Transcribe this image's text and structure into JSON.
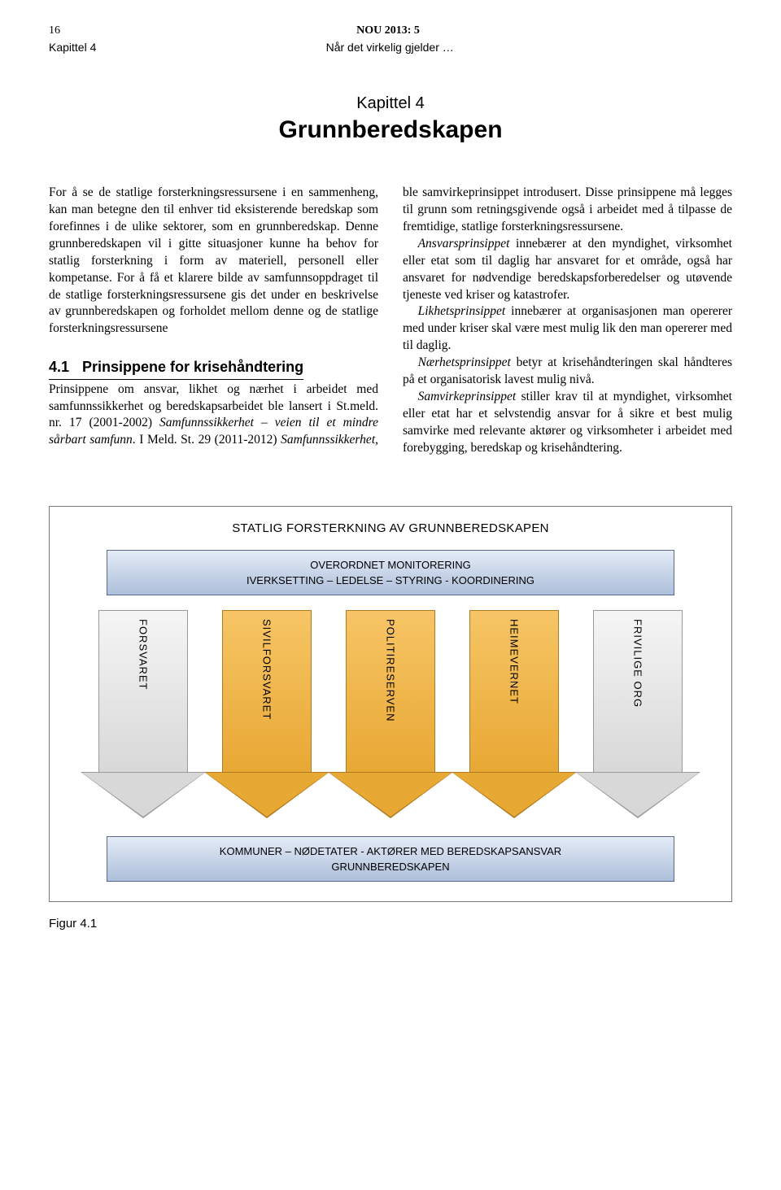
{
  "header": {
    "page_number": "16",
    "doc_id": "NOU 2013: 5",
    "chapter_ref": "Kapittel 4",
    "doc_subtitle": "Når det virkelig gjelder …"
  },
  "chapter": {
    "label": "Kapittel 4",
    "title": "Grunnberedskapen"
  },
  "body": {
    "p1": "For å se de statlige forsterkningsressursene i en sammenheng, kan man betegne den til enhver tid eksisterende beredskap som forefinnes i de ulike sektorer, som en grunnberedskap. Denne grunnberedskapen vil i gitte situasjoner kunne ha behov for statlig forsterkning i form av materiell, personell eller kompetanse. For å få et klarere bilde av samfunnsoppdraget til de statlige forsterkningsressursene gis det under en beskrivelse av grunnberedskapen og forholdet mellom denne og de statlige forsterkningsressursene",
    "section_num": "4.1",
    "section_title": "Prinsippene for krisehåndtering",
    "p2a": "Prinsippene om ansvar, likhet og nærhet i arbeidet med samfunnssikkerhet og beredskapsarbeidet ble lansert i St.meld. nr. 17 (2001-2002) ",
    "p2b_i": "Samfunnssikkerhet – veien til et mindre sårbart samfunn",
    "p2c": ". I Meld. St. 29 (2011-2012) ",
    "p2d_i": "Samfunnssikkerhet",
    "p2e": ", ble samvirkeprinsippet introdusert. Disse prinsippene må legges til grunn som retningsgivende også i arbeidet med å tilpasse de fremtidige, statlige forsterkningsressursene.",
    "p3a_i": "Ansvarsprinsippet",
    "p3b": " innebærer at den myndighet, virksomhet eller etat som til daglig har ansvaret for et område, også har ansvaret for nødvendige beredskapsforberedelser og utøvende tjeneste ved kriser og katastrofer.",
    "p4a_i": "Likhetsprinsippet",
    "p4b": " innebærer at organisasjonen man opererer med under kriser skal være mest mulig lik den man opererer med til daglig.",
    "p5a_i": "Nærhetsprinsippet",
    "p5b": " betyr at krisehåndteringen skal håndteres på et organisatorisk lavest mulig nivå.",
    "p6a_i": "Samvirkeprinsippet",
    "p6b": " stiller krav til at myndighet, virksomhet eller etat har et selvstendig ansvar for å sikre et best mulig samvirke med relevante aktører og virksomheter i arbeidet med forebygging, beredskap og krisehåndtering."
  },
  "diagram": {
    "title": "STATLIG FORSTERKNING AV GRUNNBEREDSKAPEN",
    "monitor_line1": "OVERORDNET MONITORERING",
    "monitor_line2": "IVERKSETTING  –  LEDELSE  –  STYRING  -  KOORDINERING",
    "bottom_line1": "KOMMUNER – NØDETATER  -  AKTØRER MED BEREDSKAPSANSVAR",
    "bottom_line2": "GRUNNBEREDSKAPEN",
    "arrows": [
      {
        "label": "FORSVARET",
        "fill_top": "#f5f5f5",
        "fill_bottom": "#d8d8d8",
        "border": "#9a9a9a"
      },
      {
        "label": "SIVILFORSVARET",
        "fill_top": "#f7c566",
        "fill_bottom": "#e8a834",
        "border": "#b07a20"
      },
      {
        "label": "POLITIRESERVEN",
        "fill_top": "#f7c566",
        "fill_bottom": "#e8a834",
        "border": "#b07a20"
      },
      {
        "label": "HEIMEVERNET",
        "fill_top": "#f7c566",
        "fill_bottom": "#e8a834",
        "border": "#b07a20"
      },
      {
        "label": "FRIVILIGE ORG",
        "fill_top": "#f5f5f5",
        "fill_bottom": "#d8d8d8",
        "border": "#9a9a9a"
      }
    ],
    "monitor_bar_bg_top": "#e4ebf6",
    "monitor_bar_bg_bottom": "#aebfdb",
    "bottom_bar_bg_top": "#e4ebf6",
    "bottom_bar_bg_bottom": "#aebfdb"
  },
  "figure_caption": "Figur 4.1"
}
